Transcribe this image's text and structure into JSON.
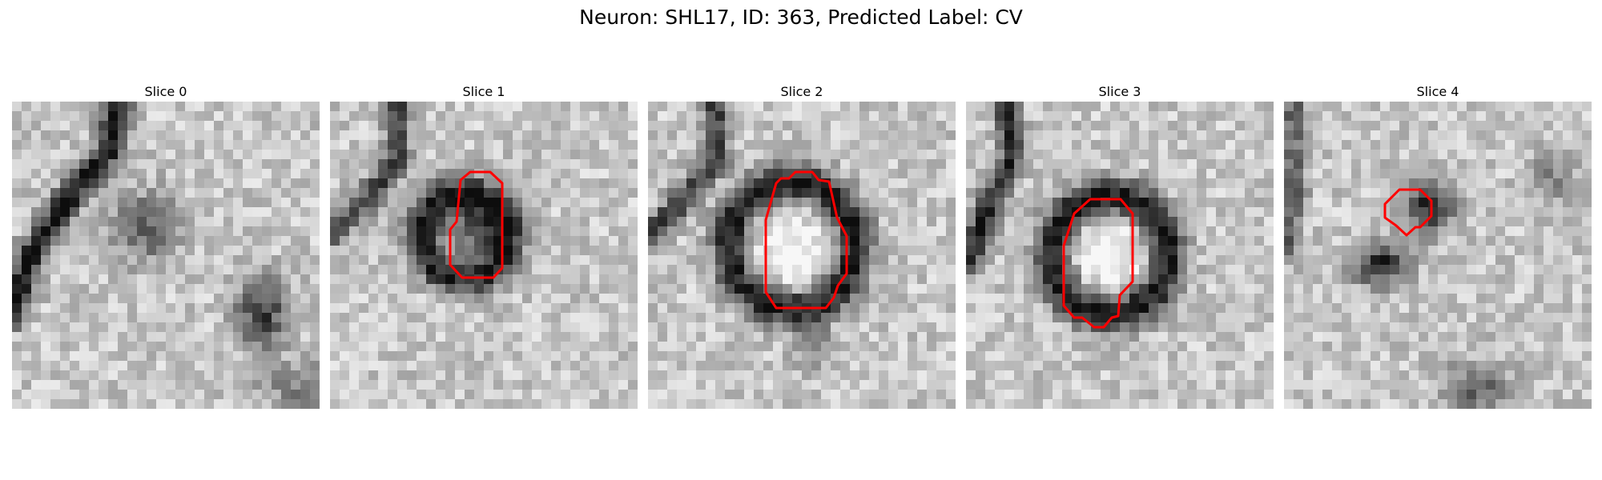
{
  "figure": {
    "title": "Neuron: SHL17, ID: 363, Predicted Label: CV"
  },
  "colors": {
    "background": "#ffffff",
    "contour": "#ff0000",
    "colormap": "grayscale"
  },
  "panels": [
    {
      "title": "Slice 0",
      "has_contour": false
    },
    {
      "title": "Slice 1",
      "has_contour": true
    },
    {
      "title": "Slice 2",
      "has_contour": true
    },
    {
      "title": "Slice 3",
      "has_contour": true
    },
    {
      "title": "Slice 4",
      "has_contour": true
    }
  ]
}
